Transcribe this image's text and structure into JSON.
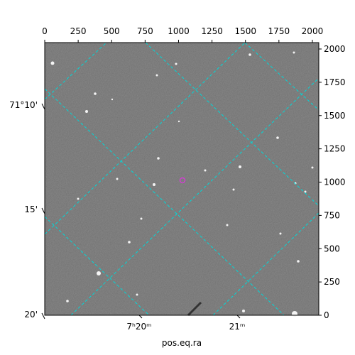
{
  "chart_data": {
    "type": "image",
    "xlabel": "pos.eq.ra",
    "xlim": [
      0,
      2048
    ],
    "ylim": [
      0,
      2048
    ],
    "xticks": [
      0,
      250,
      500,
      750,
      1000,
      1250,
      1500,
      1750,
      2000
    ],
    "yticks": [
      0,
      250,
      500,
      750,
      1000,
      1250,
      1500,
      1750,
      2000
    ],
    "wcs_y_labels": [
      "71°10'",
      "15'",
      "20'"
    ],
    "wcs_x_labels": [
      "7ʰ20ᵐ",
      "21ᵐ"
    ],
    "grid": true,
    "grid_color": "#00d8d8",
    "marker_color": "#d040d0"
  }
}
